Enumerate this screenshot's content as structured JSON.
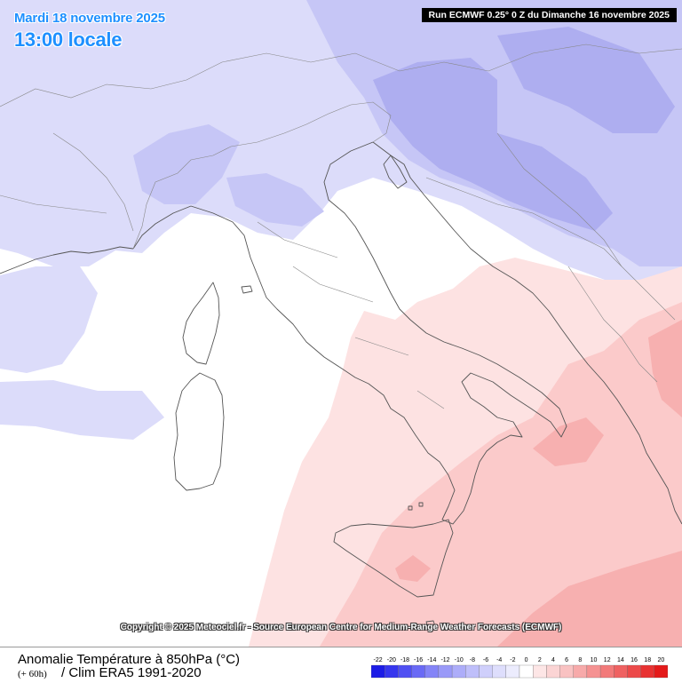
{
  "header": {
    "date": "Mardi 18 novembre 2025",
    "time": "13:00 locale",
    "run": "Run ECMWF 0.25° 0 Z du Dimanche 16 novembre 2025"
  },
  "footer": {
    "title": "Anomalie Température à 850hPa (°C)",
    "lead": "(+ 60h)",
    "clim": "/ Clim ERA5 1991-2020",
    "copyright": "Copyright © 2025 Meteociel.fr - Source European Centre for Medium-Range Weather Forecasts (ECMWF)"
  },
  "legend": {
    "ticks": [
      "-22",
      "-20",
      "-18",
      "-16",
      "-14",
      "-12",
      "-10",
      "-8",
      "-6",
      "-4",
      "-2",
      "0",
      "2",
      "4",
      "6",
      "8",
      "10",
      "12",
      "14",
      "16",
      "18",
      "20"
    ],
    "colors": [
      "#1c1ce6",
      "#3636ee",
      "#5050f2",
      "#6a6af5",
      "#8484f7",
      "#9a9af8",
      "#adadf9",
      "#bfbffa",
      "#cfcffb",
      "#dedefc",
      "#ececfd",
      "#ffffff",
      "#fde6e6",
      "#fbd4d4",
      "#f9c2c2",
      "#f7aaaa",
      "#f59292",
      "#f27a7a",
      "#ef6262",
      "#ec4a4a",
      "#e83232",
      "#e41a1a"
    ]
  },
  "colors": {
    "cold_light": "#dcdcfa",
    "cold_mid": "#c6c6f6",
    "cold_deep": "#aeaef0",
    "warm_light": "#fde2e2",
    "warm_mid": "#fbcaca",
    "warm_deep": "#f7b0b0",
    "title_blue": "#1e90ff",
    "coast": "#555555"
  },
  "map": {
    "region": "Italie / Méditerranée centrale"
  }
}
